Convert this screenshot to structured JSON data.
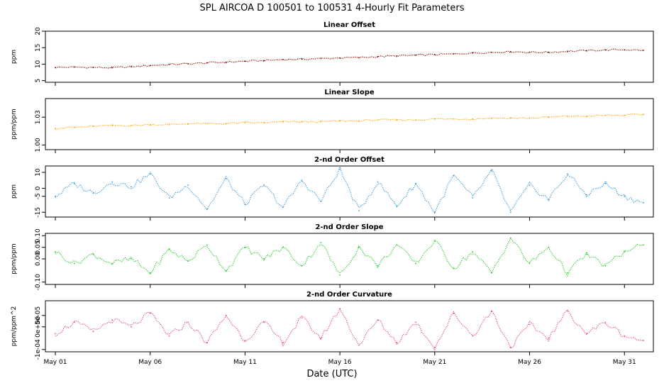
{
  "figure": {
    "title": "SPL   AIRCOA D   100501 to 100531   4-Hourly Fit Parameters",
    "xlabel": "Date (UTC)"
  },
  "x_axis": {
    "start_day": 1,
    "end_day": 32,
    "ticks": [
      {
        "day": 1,
        "label": "May 01"
      },
      {
        "day": 6,
        "label": "May 06"
      },
      {
        "day": 11,
        "label": "May 11"
      },
      {
        "day": 16,
        "label": "May 16"
      },
      {
        "day": 21,
        "label": "May 21"
      },
      {
        "day": 26,
        "label": "May 26"
      },
      {
        "day": 31,
        "label": "May 31"
      }
    ]
  },
  "chart_data": [
    {
      "type": "line",
      "title": "Linear Offset",
      "ylabel": "ppm",
      "ylim": [
        4.5,
        20
      ],
      "yticks": [
        {
          "v": 5,
          "label": "5"
        },
        {
          "v": 10,
          "label": "10"
        },
        {
          "v": 15,
          "label": "15"
        },
        {
          "v": 20,
          "label": "20"
        }
      ],
      "color": "#8b0000",
      "x": [
        1,
        2,
        3,
        4,
        5,
        6,
        7,
        8,
        9,
        10,
        11,
        12,
        13,
        14,
        15,
        16,
        17,
        18,
        19,
        20,
        21,
        22,
        23,
        24,
        25,
        26,
        27,
        28,
        29,
        30,
        31,
        32
      ],
      "y": [
        9.0,
        9.1,
        9.0,
        8.9,
        9.2,
        9.6,
        9.9,
        10.1,
        10.4,
        10.6,
        10.9,
        11.1,
        11.4,
        11.5,
        11.7,
        11.9,
        12.0,
        12.3,
        12.5,
        12.7,
        12.9,
        13.1,
        13.4,
        13.6,
        13.8,
        13.6,
        13.6,
        13.9,
        14.1,
        14.3,
        14.4,
        14.2
      ]
    },
    {
      "type": "line",
      "title": "Linear Slope",
      "ylabel": "ppm/ppm",
      "ylim": [
        0.995,
        1.05
      ],
      "yticks": [
        {
          "v": 1.0,
          "label": "1.00"
        },
        {
          "v": 1.03,
          "label": "1.03"
        }
      ],
      "color": "#ffa500",
      "x": [
        1,
        2,
        3,
        4,
        5,
        6,
        7,
        8,
        9,
        10,
        11,
        12,
        13,
        14,
        15,
        16,
        17,
        18,
        19,
        20,
        21,
        22,
        23,
        24,
        25,
        26,
        27,
        28,
        29,
        30,
        31,
        32
      ],
      "y": [
        1.018,
        1.019,
        1.02,
        1.021,
        1.021,
        1.022,
        1.022,
        1.023,
        1.023,
        1.023,
        1.024,
        1.024,
        1.025,
        1.025,
        1.025,
        1.026,
        1.026,
        1.027,
        1.027,
        1.027,
        1.028,
        1.028,
        1.028,
        1.029,
        1.029,
        1.029,
        1.03,
        1.031,
        1.031,
        1.032,
        1.032,
        1.033
      ]
    },
    {
      "type": "line",
      "title": "2-nd Order Offset",
      "ylabel": "ppm",
      "ylim": [
        -18,
        14
      ],
      "yticks": [
        {
          "v": -15,
          "label": "-15"
        },
        {
          "v": -5,
          "label": "-5"
        },
        {
          "v": 0,
          "label": "0"
        },
        {
          "v": 10,
          "label": "10"
        }
      ],
      "color": "#3399dd",
      "x": [
        1,
        2,
        3,
        4,
        5,
        6,
        7,
        8,
        9,
        10,
        11,
        12,
        13,
        14,
        15,
        16,
        17,
        18,
        19,
        20,
        21,
        22,
        23,
        24,
        25,
        26,
        27,
        28,
        29,
        30,
        31,
        32
      ],
      "y": [
        -5,
        3,
        -3,
        4,
        1,
        9,
        -6,
        2,
        -13,
        6,
        -10,
        2,
        -12,
        5,
        -8,
        12,
        -14,
        4,
        -11,
        3,
        -15,
        8,
        -6,
        11,
        -15,
        2,
        -7,
        9,
        -4,
        3,
        -5,
        -9
      ]
    },
    {
      "type": "line",
      "title": "2-nd Order Slope",
      "ylabel": "ppm/ppm",
      "ylim": [
        -0.11,
        0.11
      ],
      "yticks": [
        {
          "v": -0.1,
          "label": "-0.10"
        },
        {
          "v": 0.0,
          "label": "0.00"
        },
        {
          "v": 0.05,
          "label": "0.05"
        },
        {
          "v": 0.1,
          "label": "0.10"
        }
      ],
      "color": "#22cc22",
      "x": [
        1,
        2,
        3,
        4,
        5,
        6,
        7,
        8,
        9,
        10,
        11,
        12,
        13,
        14,
        15,
        16,
        17,
        18,
        19,
        20,
        21,
        22,
        23,
        24,
        25,
        26,
        27,
        28,
        29,
        30,
        31,
        32
      ],
      "y": [
        0.03,
        -0.02,
        0.02,
        -0.02,
        0.0,
        -0.06,
        0.04,
        -0.01,
        0.06,
        -0.05,
        0.05,
        0.0,
        0.05,
        -0.03,
        0.07,
        -0.07,
        0.05,
        -0.03,
        0.06,
        -0.02,
        0.08,
        -0.04,
        0.03,
        -0.06,
        0.09,
        -0.02,
        0.05,
        -0.06,
        0.02,
        -0.03,
        0.03,
        0.06
      ]
    },
    {
      "type": "line",
      "title": "2-nd Order Curvature",
      "ylabel": "ppm/ppm^2",
      "ylim": [
        -0.00011,
        0.000115
      ],
      "yticks": [
        {
          "v": -0.0001,
          "label": "-1e-04"
        },
        {
          "v": 0,
          "label": "0e+00"
        },
        {
          "v": 5e-05,
          "label": "5e-05"
        }
      ],
      "color": "#ee4488",
      "x": [
        1,
        2,
        3,
        4,
        5,
        6,
        7,
        8,
        9,
        10,
        11,
        12,
        13,
        14,
        15,
        16,
        17,
        18,
        19,
        20,
        21,
        22,
        23,
        24,
        25,
        26,
        27,
        28,
        29,
        30,
        31,
        32
      ],
      "y": [
        -3e-05,
        2e-05,
        -2e-05,
        3e-05,
        0.0,
        6e-05,
        -4e-05,
        2e-05,
        -7e-05,
        5e-05,
        -6e-05,
        2e-05,
        -7e-05,
        4e-05,
        -5e-05,
        8e-05,
        -8e-05,
        3e-05,
        -7e-05,
        2e-05,
        -9e-05,
        6e-05,
        -4e-05,
        7e-05,
        -9e-05,
        1e-05,
        -5e-05,
        7e-05,
        -3e-05,
        2e-05,
        -4e-05,
        -6e-05
      ]
    }
  ]
}
